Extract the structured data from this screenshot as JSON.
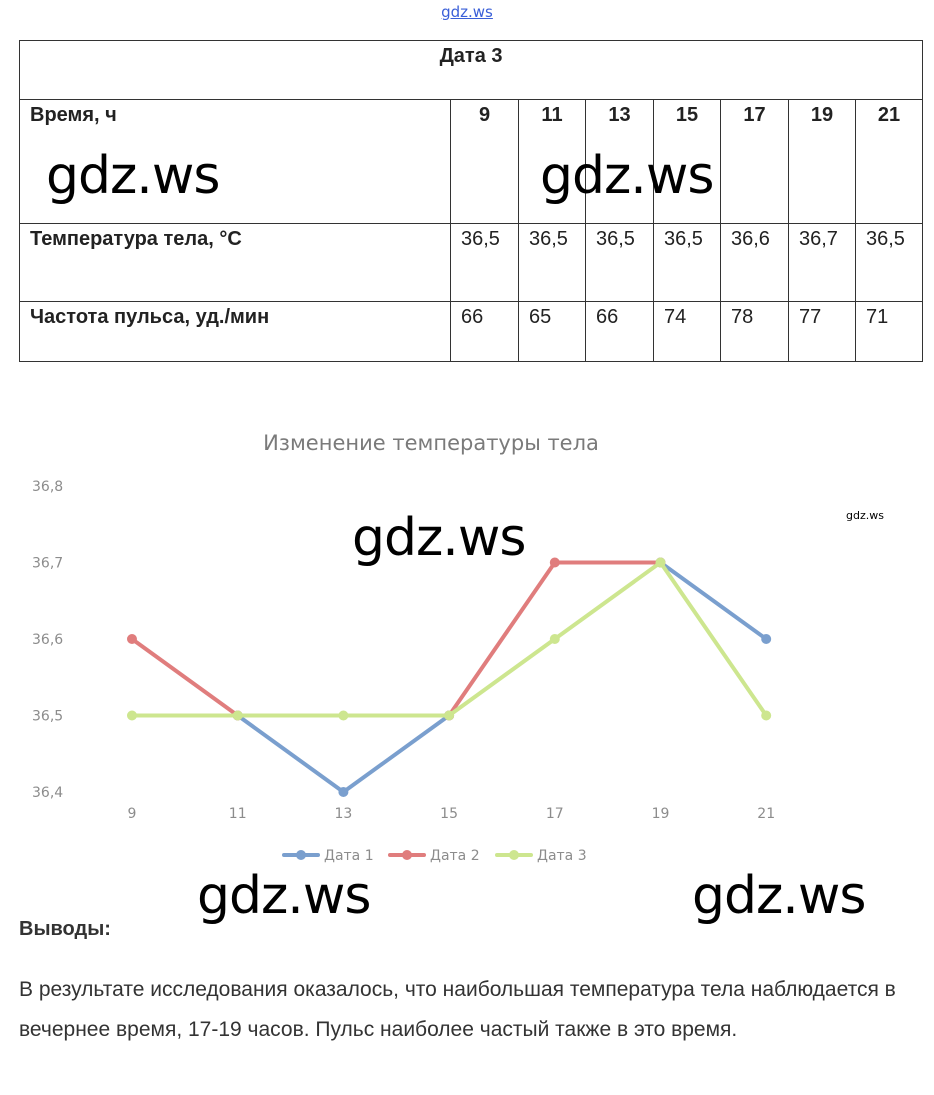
{
  "site_link": "gdz.ws",
  "table": {
    "title": "Дата 3",
    "time_label": "Время, ч",
    "hours": [
      "9",
      "11",
      "13",
      "15",
      "17",
      "19",
      "21"
    ],
    "temp_label": "Температура тела, °С",
    "temps": [
      "36,5",
      "36,5",
      "36,5",
      "36,5",
      "36,6",
      "36,7",
      "36,5"
    ],
    "pulse_label": "Частота пульса, уд./мин",
    "pulses": [
      "66",
      "65",
      "66",
      "74",
      "78",
      "77",
      "71"
    ]
  },
  "watermarks": {
    "large": "gdz.ws",
    "small": "gdz.ws"
  },
  "chart_data": {
    "type": "line",
    "title": "Изменение температуры тела",
    "categories": [
      "9",
      "11",
      "13",
      "15",
      "17",
      "19",
      "21"
    ],
    "y_ticks": [
      "36,8",
      "36,7",
      "36,6",
      "36,5",
      "36,4"
    ],
    "ylim": [
      36.4,
      36.8
    ],
    "grid": false,
    "legend_position": "bottom",
    "series": [
      {
        "name": "Дата 1",
        "color": "#7a9fce",
        "values": [
          null,
          36.5,
          36.4,
          36.5,
          null,
          36.7,
          36.6
        ]
      },
      {
        "name": "Дата 2",
        "color": "#e07d7d",
        "values": [
          36.6,
          36.5,
          null,
          36.5,
          36.7,
          36.7,
          null
        ]
      },
      {
        "name": "Дата 3",
        "color": "#cde68f",
        "values": [
          36.5,
          36.5,
          36.5,
          36.5,
          36.6,
          36.7,
          36.5
        ]
      }
    ]
  },
  "conclusions": {
    "title": "Выводы:",
    "text": "В результате исследования оказалось, что наибольшая температура тела наблюдается в вечернее время, 17-19 часов. Пульс наиболее частый также в это время."
  }
}
